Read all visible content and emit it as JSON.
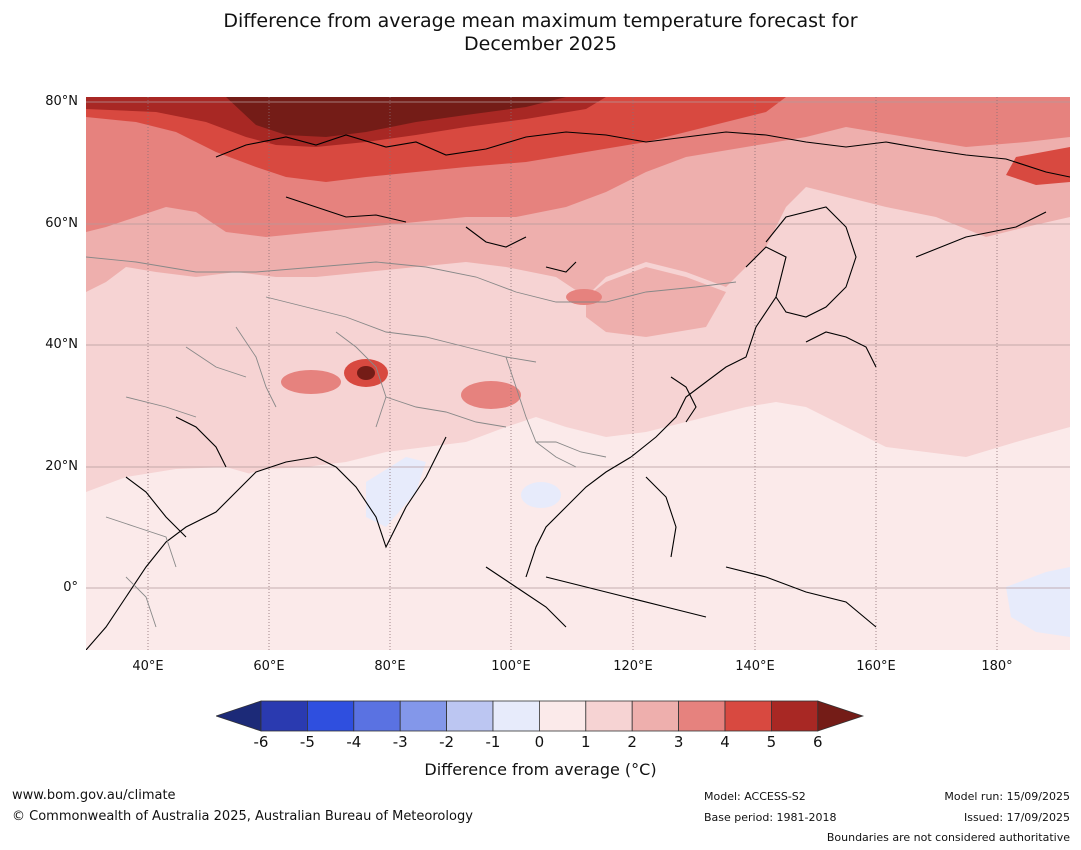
{
  "title_line1": "Difference from average mean maximum temperature forecast for",
  "title_line2": "December 2025",
  "lat_labels": [
    "80°N",
    "60°N",
    "40°N",
    "20°N",
    "0°"
  ],
  "lon_labels": [
    "40°E",
    "60°E",
    "80°E",
    "100°E",
    "120°E",
    "140°E",
    "160°E",
    "180°"
  ],
  "colorbar": {
    "label": "Difference from average (°C)",
    "ticks": [
      "-6",
      "-5",
      "-4",
      "-3",
      "-2",
      "-1",
      "0",
      "1",
      "2",
      "3",
      "4",
      "5",
      "6"
    ],
    "colors": [
      "#1c2a78",
      "#2a3ab0",
      "#2f4fdf",
      "#5a72e2",
      "#8397ea",
      "#bcc6f2",
      "#e7ebfb",
      "#fbeaea",
      "#f6d3d3",
      "#eeafad",
      "#e6827e",
      "#d84940",
      "#a82824",
      "#741c17"
    ]
  },
  "footer": {
    "website": "www.bom.gov.au/climate",
    "copyright": "© Commonwealth of Australia 2025, Australian Bureau of Meteorology",
    "model": "Model: ACCESS-S2",
    "base_period": "Base period: 1981-2018",
    "model_run": "Model run: 15/09/2025",
    "issued": "Issued: 17/09/2025",
    "disclaimer": "Boundaries are not considered authoritative"
  }
}
